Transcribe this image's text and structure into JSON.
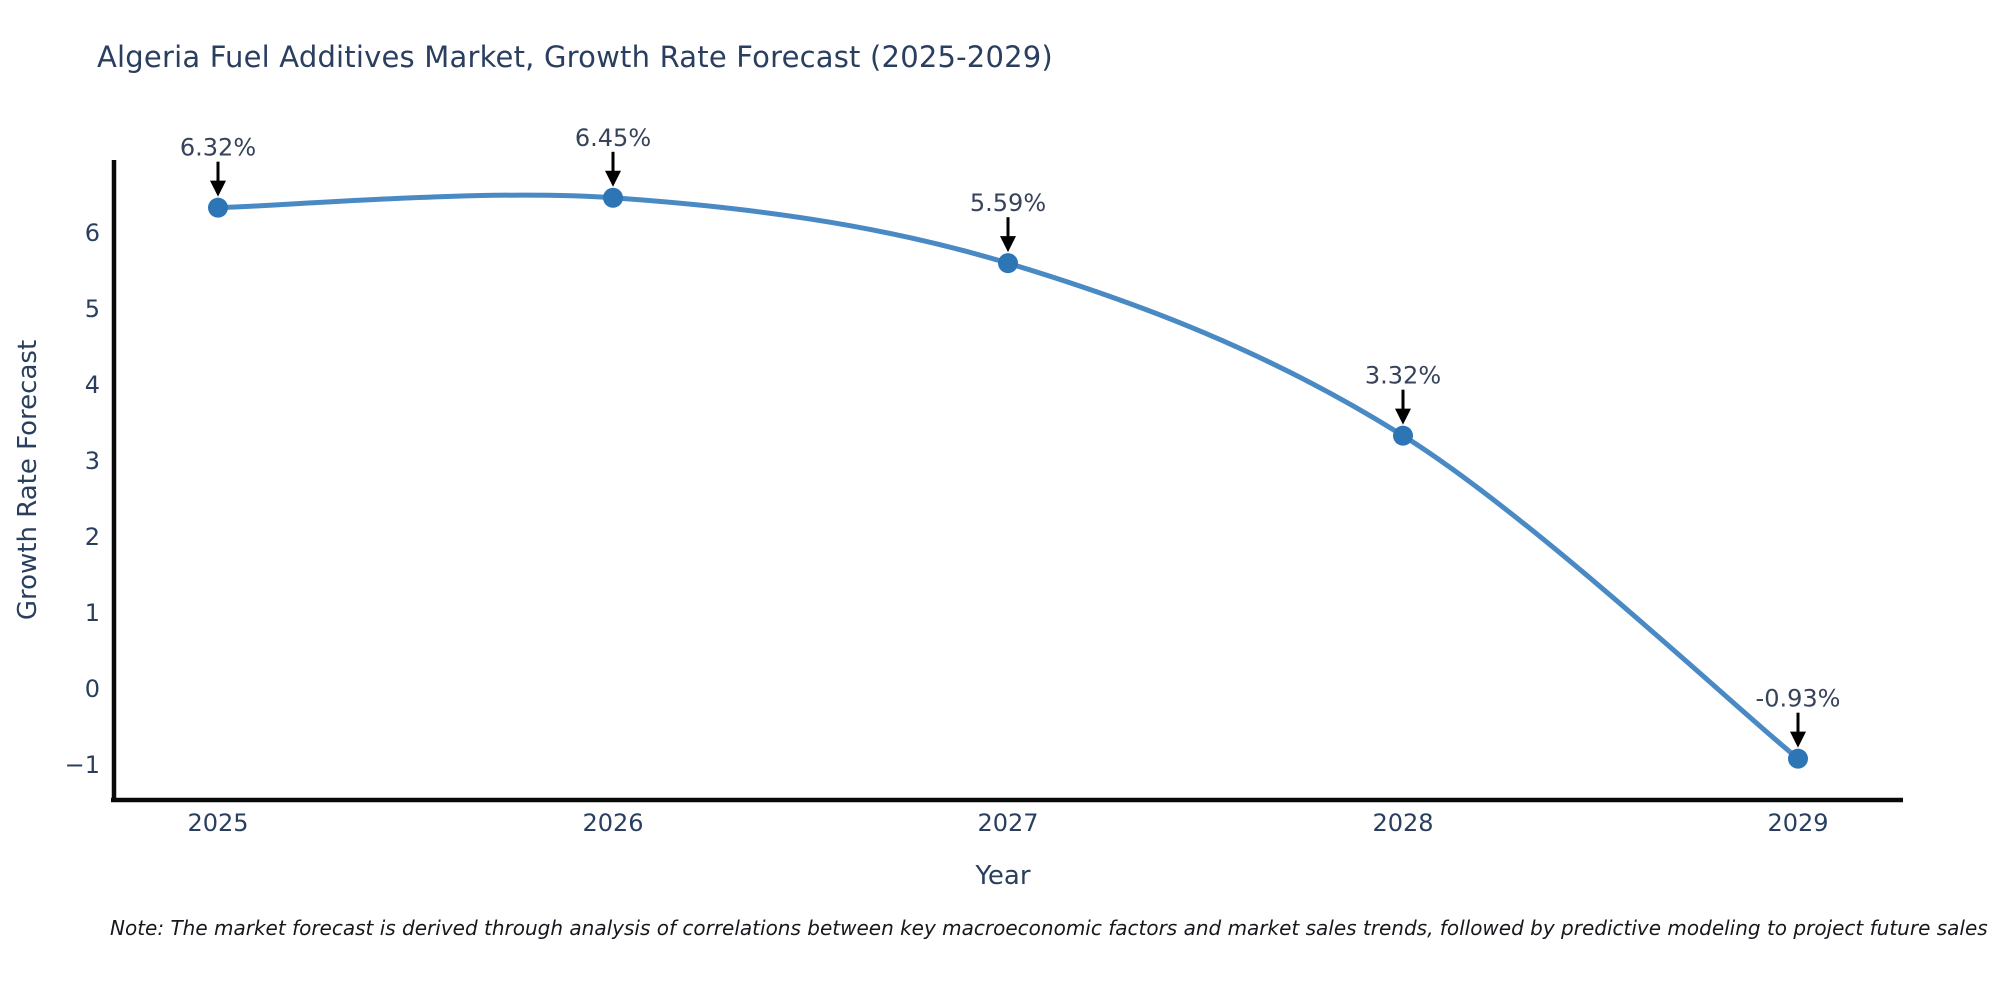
{
  "chart": {
    "title": "Algeria Fuel Additives Market, Growth Rate Forecast (2025-2029)",
    "ylabel": "Growth Rate Forecast",
    "xlabel": "Year",
    "note": "Note: The market forecast is derived through analysis of correlations between key macroeconomic factors and market sales trends, followed by predictive modeling to project future sales"
  },
  "chart_data": {
    "type": "line",
    "title": "Algeria Fuel Additives Market, Growth Rate Forecast (2025-2029)",
    "xlabel": "Year",
    "ylabel": "Growth Rate Forecast",
    "x": [
      2025,
      2026,
      2027,
      2028,
      2029
    ],
    "series": [
      {
        "name": "Growth Rate Forecast",
        "values": [
          6.32,
          6.45,
          5.59,
          3.32,
          -0.93
        ],
        "point_labels": [
          "6.32%",
          "6.45%",
          "5.59%",
          "3.32%",
          "-0.93%"
        ]
      }
    ],
    "xticks": [
      "2025",
      "2026",
      "2027",
      "2028",
      "2029"
    ],
    "yticks": [
      -1,
      0,
      1,
      2,
      3,
      4,
      5,
      6
    ],
    "ylim": [
      -1.5,
      6.95
    ],
    "grid": false,
    "legend": false,
    "line_shape": "spline",
    "annotations_arrows": true
  },
  "style": {
    "line_color": "#4a8ac4",
    "marker_color": "#2e75b6",
    "axis_color": "#0a0a0a",
    "tick_color": "#2a3f5f",
    "annotation_color": "#36435a",
    "arrow_color": "#000000",
    "background": "#ffffff"
  }
}
